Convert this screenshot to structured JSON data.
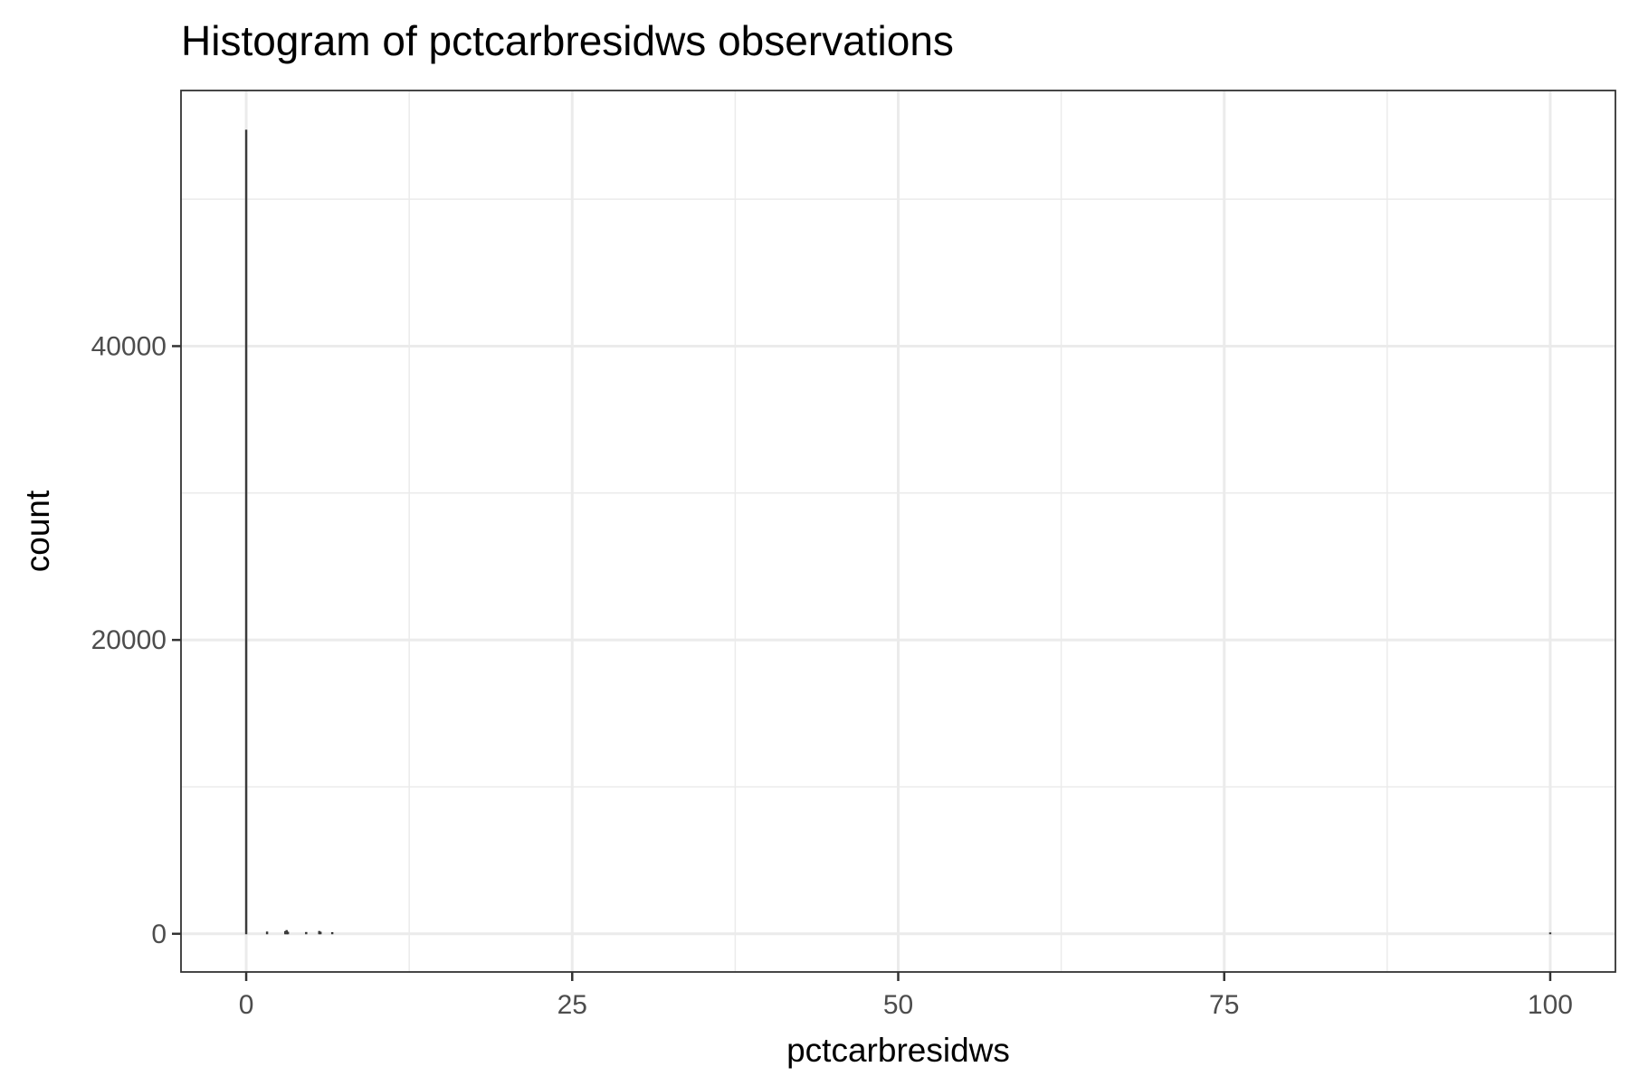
{
  "chart_data": {
    "type": "bar",
    "title": "Histogram of pctcarbresidws observations",
    "xlabel": "pctcarbresidws",
    "ylabel": "count",
    "xlim": [
      -5,
      105
    ],
    "ylim": [
      -2600,
      57400
    ],
    "x_ticks": [
      0,
      25,
      50,
      75,
      100
    ],
    "x_tick_labels": [
      "0",
      "25",
      "50",
      "75",
      "100"
    ],
    "y_ticks": [
      0,
      20000,
      40000
    ],
    "y_tick_labels": [
      "0",
      "20000",
      "40000"
    ],
    "y_minor_ticks": [
      10000,
      30000,
      50000
    ],
    "x_minor_ticks": [
      12.5,
      37.5,
      62.5,
      87.5
    ],
    "grid": true,
    "legend": "none",
    "bin_width": 0.1,
    "bins": [
      {
        "x": 0.0,
        "count": 54700
      },
      {
        "x": 1.6,
        "count": 120
      },
      {
        "x": 3.0,
        "count": 150
      },
      {
        "x": 3.1,
        "count": 220
      },
      {
        "x": 3.2,
        "count": 110
      },
      {
        "x": 4.6,
        "count": 90
      },
      {
        "x": 5.6,
        "count": 160
      },
      {
        "x": 5.7,
        "count": 110
      },
      {
        "x": 6.6,
        "count": 80
      },
      {
        "x": 100.0,
        "count": 60
      }
    ]
  }
}
